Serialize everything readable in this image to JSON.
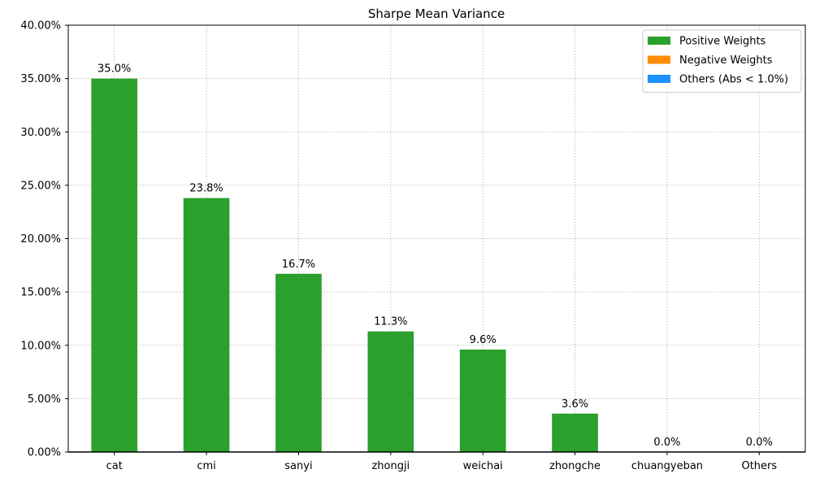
{
  "chart_data": {
    "type": "bar",
    "title": "Sharpe Mean Variance",
    "xlabel": "",
    "ylabel": "",
    "categories": [
      "cat",
      "cmi",
      "sanyi",
      "zhongji",
      "weichai",
      "zhongche",
      "chuangyeban",
      "Others"
    ],
    "series": [
      {
        "name": "Positive Weights",
        "color": "#2ca02c",
        "values": [
          35.0,
          23.8,
          16.7,
          11.3,
          9.6,
          3.6,
          0.0,
          0.0
        ]
      }
    ],
    "data_labels": [
      "35.0%",
      "23.8%",
      "16.7%",
      "11.3%",
      "9.6%",
      "3.6%",
      "0.0%",
      "0.0%"
    ],
    "ylim": [
      0,
      40
    ],
    "yticks": [
      0,
      5,
      10,
      15,
      20,
      25,
      30,
      35,
      40
    ],
    "ytick_labels": [
      "0.00%",
      "5.00%",
      "10.00%",
      "15.00%",
      "20.00%",
      "25.00%",
      "30.00%",
      "35.00%",
      "40.00%"
    ],
    "grid": true,
    "legend": {
      "placement": "top-right",
      "entries": [
        {
          "label": "Positive Weights",
          "color": "#2ca02c"
        },
        {
          "label": "Negative Weights",
          "color": "#ff8c00"
        },
        {
          "label": "Others (Abs < 1.0%)",
          "color": "#1e90ff"
        }
      ]
    }
  }
}
